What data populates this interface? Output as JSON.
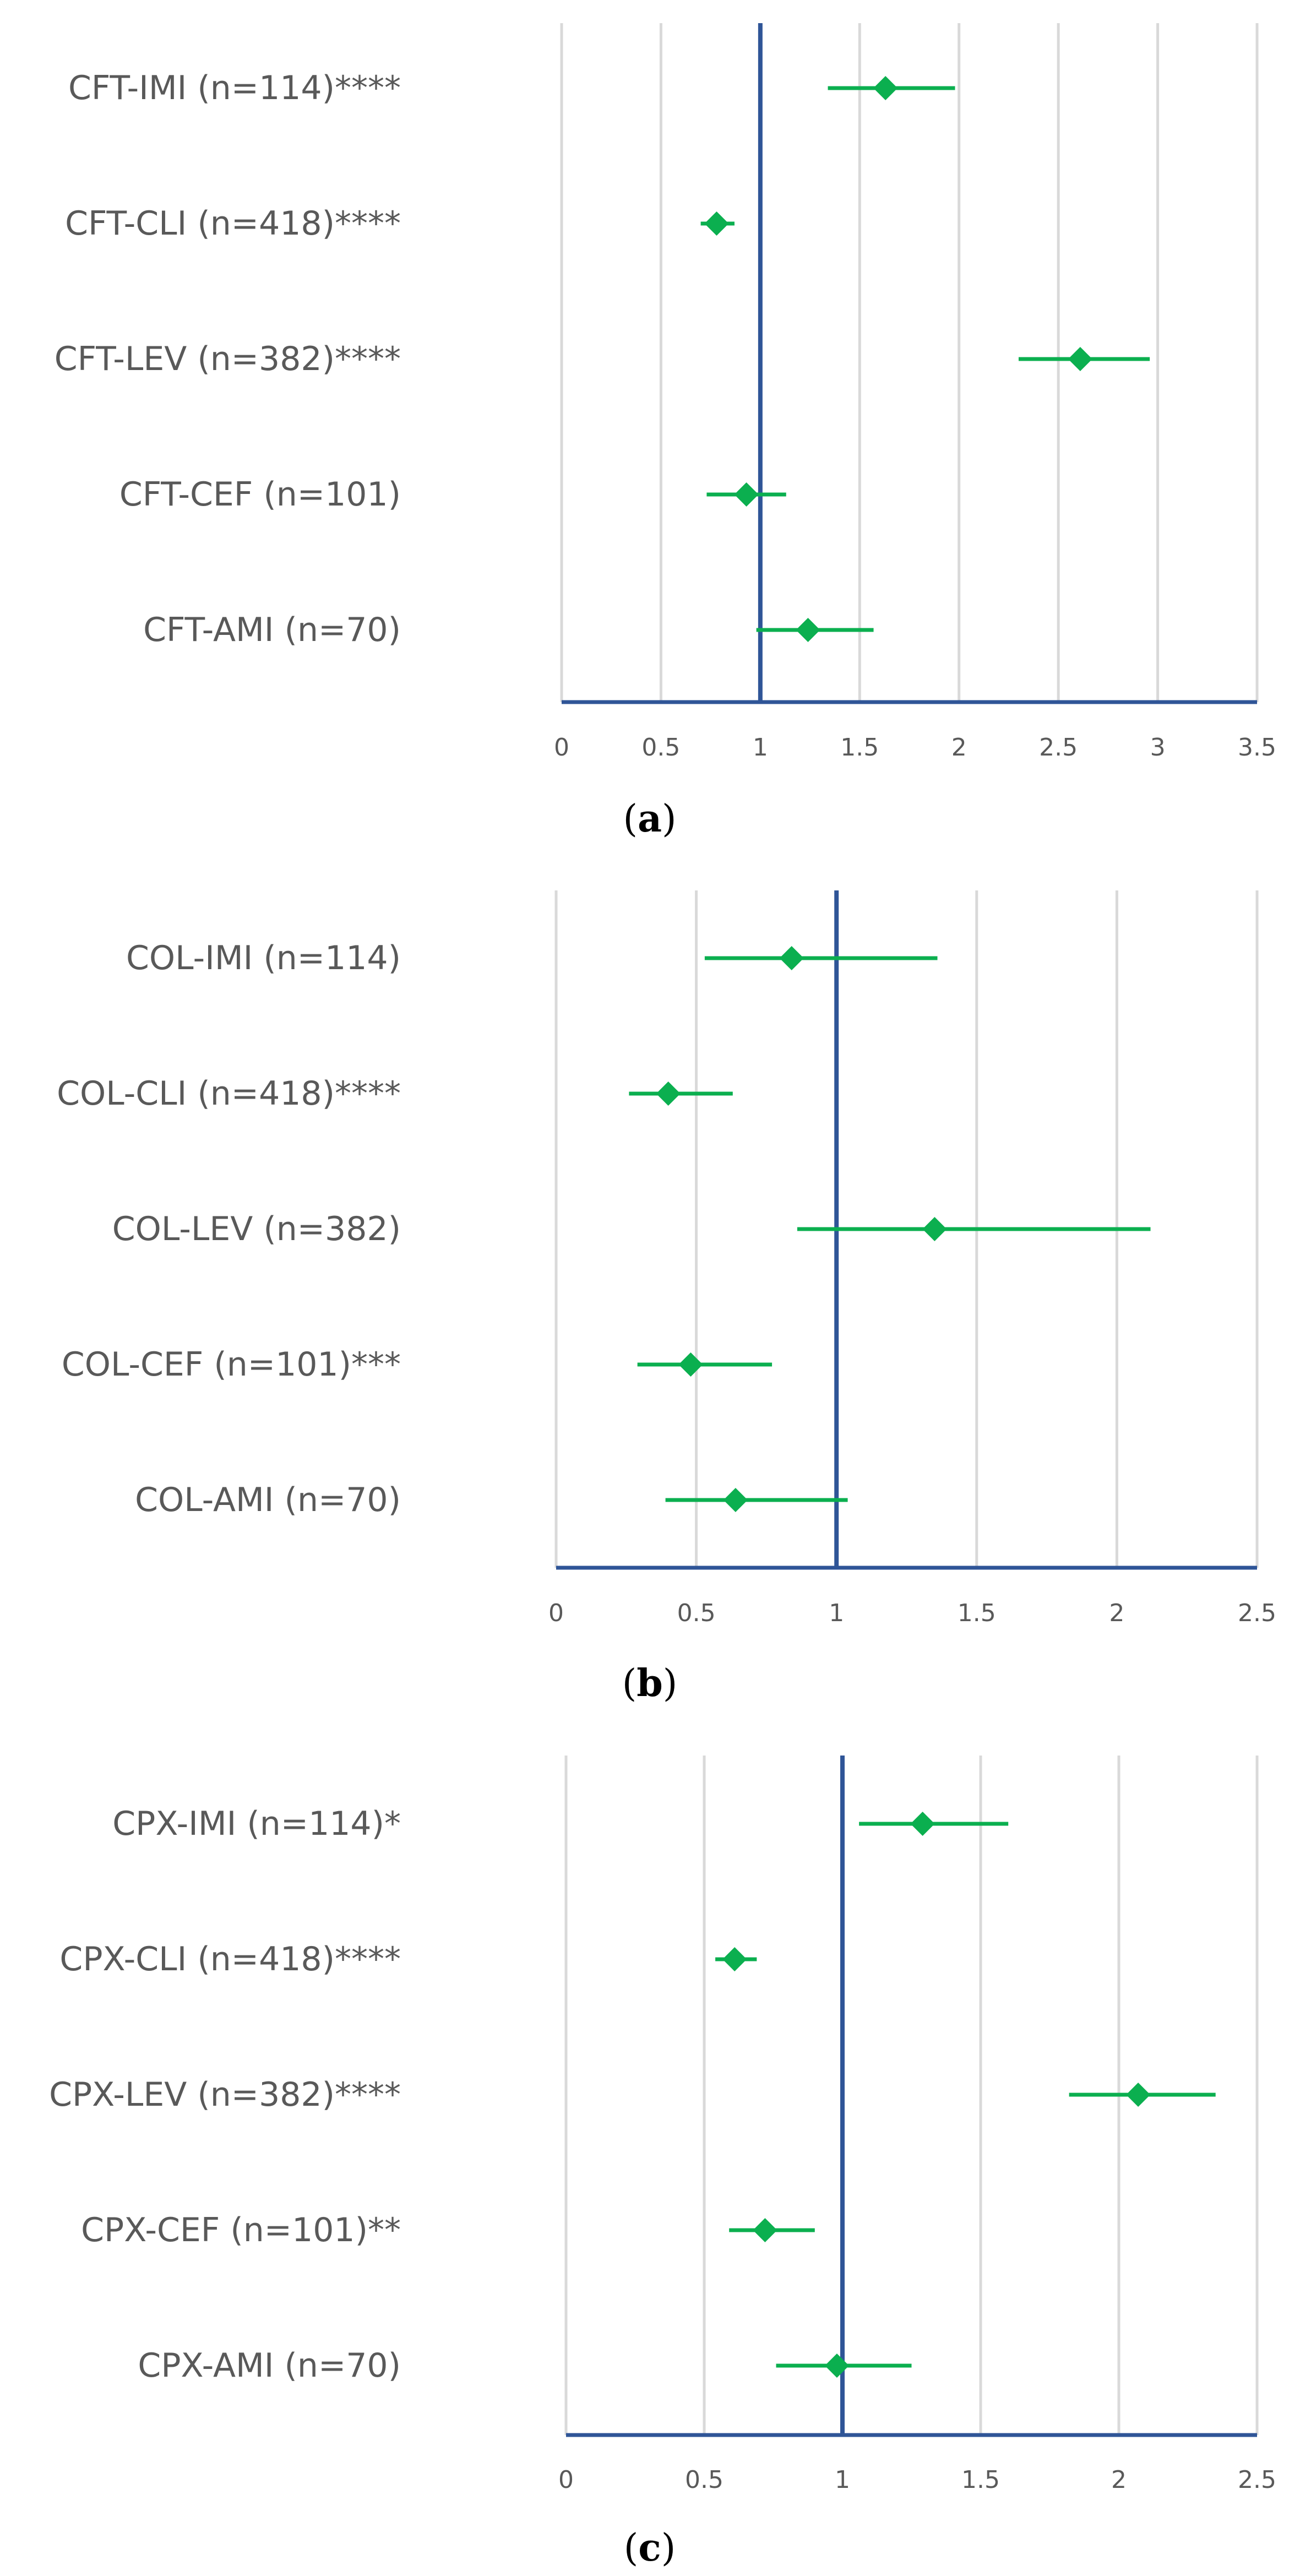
{
  "colors": {
    "marker": "#0BAF4F",
    "reference_line": "#2F5597",
    "axis": "#2F5597",
    "grid": "#D9D9D9",
    "label_text": "#595959"
  },
  "chart_data": [
    {
      "type": "forest",
      "panel_label": "a",
      "xlim": [
        0,
        3.5
      ],
      "xticks": [
        "0",
        "0.5",
        "1",
        "1.5",
        "2",
        "2.5",
        "3",
        "3.5"
      ],
      "reference_line": 1,
      "grid": true,
      "categories": [
        "CFT-IMI (n=114)****",
        "CFT-CLI (n=418)****",
        "CFT-LEV (n=382)****",
        "CFT-CEF (n=101)",
        "CFT-AMI (n=70)"
      ],
      "estimate": [
        1.63,
        0.78,
        2.61,
        0.93,
        1.24
      ],
      "ci_low": [
        1.34,
        0.7,
        2.3,
        0.73,
        0.98
      ],
      "ci_high": [
        1.98,
        0.87,
        2.96,
        1.13,
        1.57
      ]
    },
    {
      "type": "forest",
      "panel_label": "b",
      "xlim": [
        0,
        2.5
      ],
      "xticks": [
        "0",
        "0.5",
        "1",
        "1.5",
        "2",
        "2.5"
      ],
      "reference_line": 1,
      "grid": true,
      "categories": [
        "COL-IMI (n=114)",
        "COL-CLI (n=418)****",
        "COL-LEV (n=382)",
        "COL-CEF (n=101)***",
        "COL-AMI (n=70)"
      ],
      "estimate": [
        0.84,
        0.4,
        1.35,
        0.48,
        0.64
      ],
      "ci_low": [
        0.53,
        0.26,
        0.86,
        0.29,
        0.39
      ],
      "ci_high": [
        1.36,
        0.63,
        2.12,
        0.77,
        1.04
      ]
    },
    {
      "type": "forest",
      "panel_label": "c",
      "xlim": [
        0,
        2.5
      ],
      "xticks": [
        "0",
        "0.5",
        "1",
        "1.5",
        "2",
        "2.5"
      ],
      "reference_line": 1,
      "grid": true,
      "categories": [
        "CPX-IMI (n=114)*",
        "CPX-CLI (n=418)****",
        "CPX-LEV (n=382)****",
        "CPX-CEF (n=101)**",
        "CPX-AMI (n=70)"
      ],
      "estimate": [
        1.29,
        0.61,
        2.07,
        0.72,
        0.98
      ],
      "ci_low": [
        1.06,
        0.54,
        1.82,
        0.59,
        0.76
      ],
      "ci_high": [
        1.6,
        0.69,
        2.35,
        0.9,
        1.25
      ]
    }
  ]
}
